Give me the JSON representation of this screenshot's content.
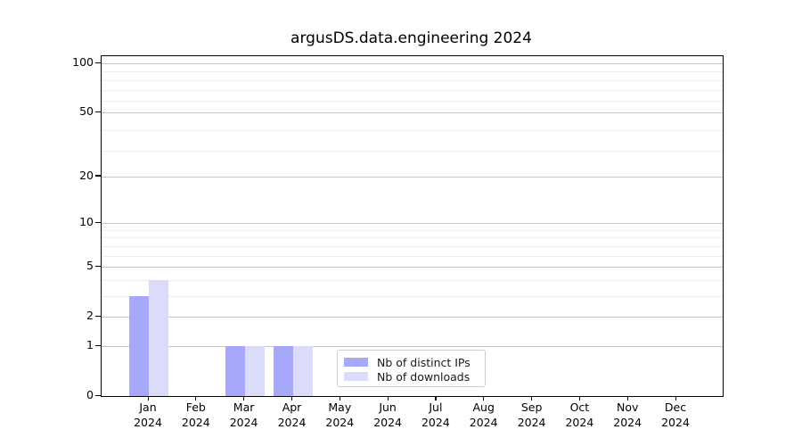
{
  "chart_data": {
    "type": "bar",
    "title": "argusDS.data.engineering 2024",
    "categories": [
      "Jan 2024",
      "Feb 2024",
      "Mar 2024",
      "Apr 2024",
      "May 2024",
      "Jun 2024",
      "Jul 2024",
      "Aug 2024",
      "Sep 2024",
      "Oct 2024",
      "Nov 2024",
      "Dec 2024"
    ],
    "series": [
      {
        "name": "Nb of distinct IPs",
        "color": "#a8a8fa",
        "values": [
          3,
          0,
          1,
          1,
          0,
          0,
          0,
          0,
          0,
          0,
          0,
          0
        ]
      },
      {
        "name": "Nb of downloads",
        "color": "#dbdbfa",
        "values": [
          4,
          0,
          1,
          1,
          0,
          0,
          0,
          0,
          0,
          0,
          0,
          0
        ]
      }
    ],
    "y_ticks": [
      0,
      1,
      2,
      5,
      10,
      20,
      50,
      100
    ],
    "y_scale": "log10(1+v)",
    "ylim": [
      0,
      110
    ],
    "grid": "major+minor horizontal",
    "legend_position": "lower center",
    "colors": {
      "major_grid": "#c6c6c6",
      "minor_grid": "#ededed",
      "spine": "#000000",
      "background": "#ffffff"
    }
  }
}
